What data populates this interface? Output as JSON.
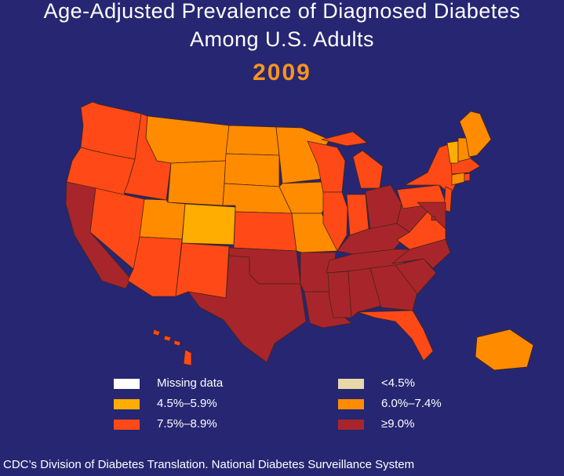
{
  "title_line1": "Age-Adjusted Prevalence of Diagnosed Diabetes",
  "title_line2": "Among U.S. Adults",
  "year": "2009",
  "legend": [
    {
      "label": "Missing data",
      "color": "#ffffff"
    },
    {
      "label": "<4.5%",
      "color": "#e8d8a8"
    },
    {
      "label": "4.5%–5.9%",
      "color": "#ffad00"
    },
    {
      "label": "6.0%–7.4%",
      "color": "#ff8c00"
    },
    {
      "label": "7.5%–8.9%",
      "color": "#ff4a17"
    },
    {
      "label": "≥9.0%",
      "color": "#a8262b"
    }
  ],
  "footer": "CDC’s Division of Diabetes Translation.  National Diabetes Surveillance System",
  "categories": {
    "c4": {
      "range": "4.5%–5.9%",
      "color": "#ffad00"
    },
    "c6": {
      "range": "6.0%–7.4%",
      "color": "#ff8c00"
    },
    "c7": {
      "range": "7.5%–8.9%",
      "color": "#ff4a17"
    },
    "c9": {
      "range": "≥9.0%",
      "color": "#a8262b"
    }
  },
  "state_categories": {
    "WA": "7.5%–8.9%",
    "OR": "7.5%–8.9%",
    "CA": "≥9.0%",
    "NV": "7.5%–8.9%",
    "ID": "7.5%–8.9%",
    "MT": "6.0%–7.4%",
    "WY": "6.0%–7.4%",
    "UT": "6.0%–7.4%",
    "AZ": "7.5%–8.9%",
    "CO": "4.5%–5.9%",
    "NM": "7.5%–8.9%",
    "ND": "6.0%–7.4%",
    "SD": "6.0%–7.4%",
    "NE": "6.0%–7.4%",
    "KS": "7.5%–8.9%",
    "OK": "≥9.0%",
    "TX": "≥9.0%",
    "MN": "6.0%–7.4%",
    "IA": "6.0%–7.4%",
    "MO": "6.0%–7.4%",
    "AR": "≥9.0%",
    "LA": "≥9.0%",
    "WI": "7.5%–8.9%",
    "IL": "7.5%–8.9%",
    "MI": "7.5%–8.9%",
    "IN": "7.5%–8.9%",
    "OH": "≥9.0%",
    "KY": "≥9.0%",
    "TN": "≥9.0%",
    "MS": "≥9.0%",
    "AL": "≥9.0%",
    "GA": "≥9.0%",
    "FL": "7.5%–8.9%",
    "SC": "≥9.0%",
    "NC": "≥9.0%",
    "VA": "7.5%–8.9%",
    "WV": "≥9.0%",
    "PA": "7.5%–8.9%",
    "NY": "7.5%–8.9%",
    "NJ": "7.5%–8.9%",
    "DE": "≥9.0%",
    "MD": "≥9.0%",
    "DC": "≥9.0%",
    "CT": "6.0%–7.4%",
    "RI": "7.5%–8.9%",
    "MA": "7.5%–8.9%",
    "VT": "4.5%–5.9%",
    "NH": "6.0%–7.4%",
    "ME": "6.0%–7.4%",
    "AK": "6.0%–7.4%",
    "HI": "7.5%–8.9%"
  }
}
